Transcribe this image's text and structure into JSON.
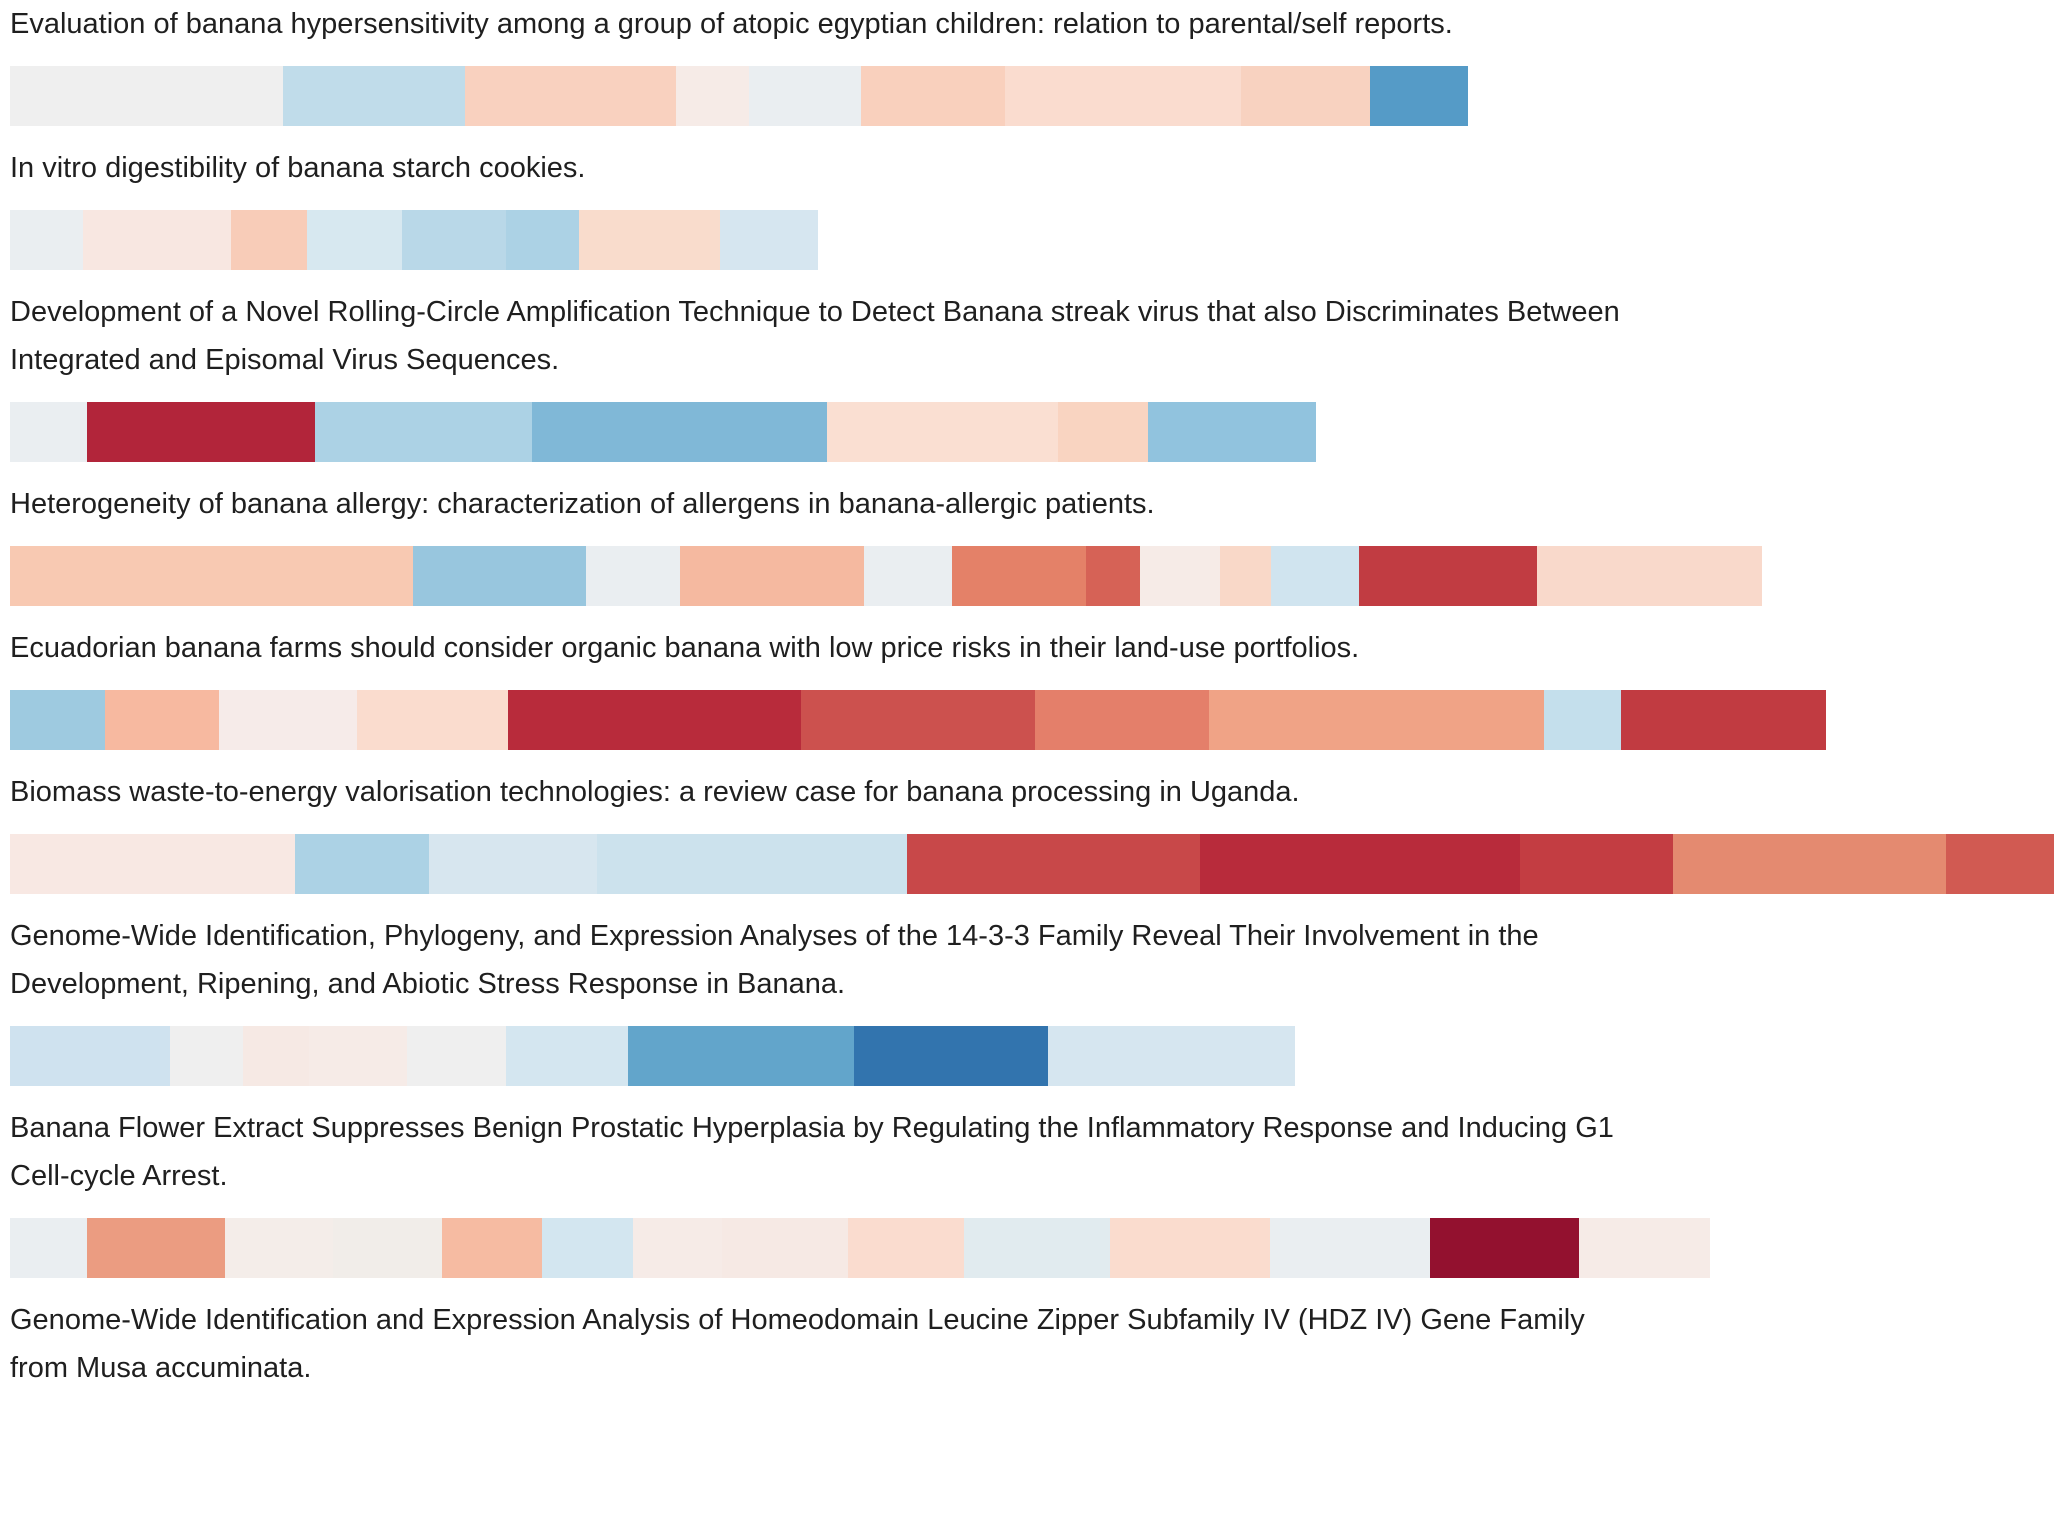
{
  "chart_data": {
    "type": "heatmap",
    "rows": [
      {
        "title": "Evaluation of banana hypersensitivity among a group of atopic egyptian children: relation to parental/self reports.",
        "segments": [
          {
            "w": 273,
            "color": "#efefef"
          },
          {
            "w": 182,
            "color": "#c0dcea"
          },
          {
            "w": 211,
            "color": "#f9d1bf"
          },
          {
            "w": 73,
            "color": "#f6ebe7"
          },
          {
            "w": 112,
            "color": "#eaeef1"
          },
          {
            "w": 144,
            "color": "#f9d0bd"
          },
          {
            "w": 236,
            "color": "#fadccf"
          },
          {
            "w": 129,
            "color": "#f8d2c0"
          },
          {
            "w": 98,
            "color": "#559bc7"
          }
        ]
      },
      {
        "title": "In vitro digestibility of banana starch cookies.",
        "segments": [
          {
            "w": 73,
            "color": "#eaeef1"
          },
          {
            "w": 148,
            "color": "#f8e7e1"
          },
          {
            "w": 76,
            "color": "#f8ccb8"
          },
          {
            "w": 95,
            "color": "#d7e8f0"
          },
          {
            "w": 104,
            "color": "#b9d8e8"
          },
          {
            "w": 73,
            "color": "#acd2e5"
          },
          {
            "w": 141,
            "color": "#f9dccc"
          },
          {
            "w": 98,
            "color": "#d6e6f0"
          }
        ]
      },
      {
        "title": "Development of a Novel Rolling-Circle Amplification Technique to Detect Banana streak virus that also Discriminates Between Integrated and Episomal Virus Sequences.",
        "segments": [
          {
            "w": 77,
            "color": "#eaeef1"
          },
          {
            "w": 228,
            "color": "#b2253a"
          },
          {
            "w": 217,
            "color": "#acd2e5"
          },
          {
            "w": 295,
            "color": "#80b8d7"
          },
          {
            "w": 231,
            "color": "#fadfd2"
          },
          {
            "w": 90,
            "color": "#f9d4c1"
          },
          {
            "w": 168,
            "color": "#91c3de"
          }
        ]
      },
      {
        "title": "Heterogeneity of banana allergy: characterization of allergens in banana-allergic patients.",
        "segments": [
          {
            "w": 403,
            "color": "#f8c9b2"
          },
          {
            "w": 173,
            "color": "#98c6de"
          },
          {
            "w": 94,
            "color": "#eaeef1"
          },
          {
            "w": 184,
            "color": "#f5b9a0"
          },
          {
            "w": 88,
            "color": "#eaeef1"
          },
          {
            "w": 134,
            "color": "#e48168"
          },
          {
            "w": 54,
            "color": "#d66256"
          },
          {
            "w": 80,
            "color": "#f6ebe7"
          },
          {
            "w": 51,
            "color": "#f9d8c8"
          },
          {
            "w": 88,
            "color": "#d0e4ef"
          },
          {
            "w": 178,
            "color": "#c13c42"
          },
          {
            "w": 225,
            "color": "#f9d9cb"
          }
        ]
      },
      {
        "title": "Ecuadorian banana farms should consider organic banana with low price risks in their land-use portfolios.",
        "segments": [
          {
            "w": 95,
            "color": "#9ecae0"
          },
          {
            "w": 114,
            "color": "#f7b9a0"
          },
          {
            "w": 138,
            "color": "#f6ebe9"
          },
          {
            "w": 151,
            "color": "#fadcce"
          },
          {
            "w": 293,
            "color": "#b82b3b"
          },
          {
            "w": 234,
            "color": "#cc514e"
          },
          {
            "w": 174,
            "color": "#e47f6a"
          },
          {
            "w": 335,
            "color": "#f0a386"
          },
          {
            "w": 77,
            "color": "#c4dfec"
          },
          {
            "w": 205,
            "color": "#c13b41"
          }
        ]
      },
      {
        "title": "Biomass waste-to-energy valorisation technologies: a review case for banana processing in Uganda.",
        "segments": [
          {
            "w": 285,
            "color": "#f8e8e3"
          },
          {
            "w": 134,
            "color": "#acd2e5"
          },
          {
            "w": 168,
            "color": "#d7e6ef"
          },
          {
            "w": 310,
            "color": "#cce2ed"
          },
          {
            "w": 293,
            "color": "#c84849"
          },
          {
            "w": 320,
            "color": "#b82b3b"
          },
          {
            "w": 153,
            "color": "#c33d42"
          },
          {
            "w": 273,
            "color": "#e48a70"
          },
          {
            "w": 118,
            "color": "#d15a52"
          }
        ]
      },
      {
        "title": "Genome-Wide Identification, Phylogeny, and Expression Analyses of the 14-3-3 Family Reveal Their Involvement in the Development, Ripening, and Abiotic Stress Response in Banana.",
        "segments": [
          {
            "w": 160,
            "color": "#cfe2ef"
          },
          {
            "w": 73,
            "color": "#efefef"
          },
          {
            "w": 66,
            "color": "#f6e9e4"
          },
          {
            "w": 98,
            "color": "#f6ebe7"
          },
          {
            "w": 99,
            "color": "#efefef"
          },
          {
            "w": 122,
            "color": "#d4e6f0"
          },
          {
            "w": 226,
            "color": "#62a5cb"
          },
          {
            "w": 194,
            "color": "#3274ae"
          },
          {
            "w": 247,
            "color": "#d6e6f0"
          }
        ]
      },
      {
        "title": "Banana Flower Extract Suppresses Benign Prostatic Hyperplasia by Regulating the Inflammatory Response and Inducing G1 Cell-cycle Arrest.",
        "segments": [
          {
            "w": 77,
            "color": "#eaeef1"
          },
          {
            "w": 138,
            "color": "#eb9c81"
          },
          {
            "w": 108,
            "color": "#f4ede9"
          },
          {
            "w": 109,
            "color": "#f1ede9"
          },
          {
            "w": 100,
            "color": "#f6bba2"
          },
          {
            "w": 91,
            "color": "#d3e6f0"
          },
          {
            "w": 89,
            "color": "#f6ebe7"
          },
          {
            "w": 126,
            "color": "#f6e9e4"
          },
          {
            "w": 116,
            "color": "#fadccf"
          },
          {
            "w": 146,
            "color": "#e1ebef"
          },
          {
            "w": 160,
            "color": "#fadcce"
          },
          {
            "w": 160,
            "color": "#eaeef1"
          },
          {
            "w": 149,
            "color": "#93112f"
          },
          {
            "w": 131,
            "color": "#f6ebe7"
          }
        ]
      },
      {
        "title": "Genome-Wide Identification and Expression Analysis of Homeodomain Leucine Zipper Subfamily IV (HDZ IV) Gene Family from Musa accuminata.",
        "segments": []
      }
    ]
  }
}
